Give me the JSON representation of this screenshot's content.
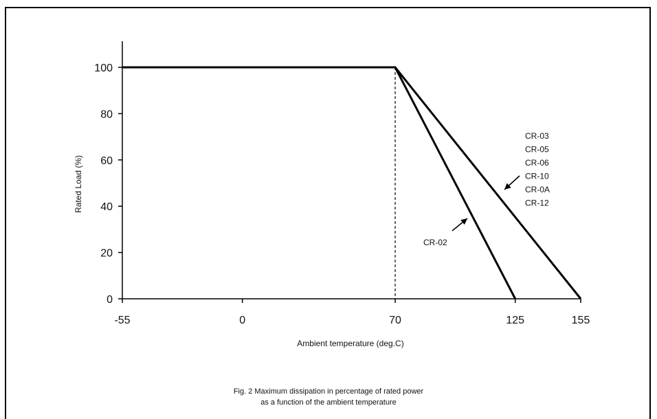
{
  "chart_data": {
    "type": "line",
    "xlabel": "Ambient temperature (deg.C)",
    "ylabel": "Rated Load (%)",
    "x_ticks": [
      "-55",
      "0",
      "70",
      "125",
      "155"
    ],
    "y_ticks": [
      "0",
      "20",
      "40",
      "60",
      "80",
      "100"
    ],
    "xlim": [
      -55,
      155
    ],
    "ylim": [
      0,
      110
    ],
    "grid": false,
    "series": [
      {
        "x": [
          -55,
          70,
          125
        ],
        "y": [
          100,
          100,
          0
        ]
      },
      {
        "x": [
          70,
          155
        ],
        "y": [
          100,
          0
        ]
      }
    ],
    "reference_lines": [
      {
        "orientation": "vertical",
        "x": 70,
        "y_from": 0,
        "y_to": 100,
        "style": "dashed"
      }
    ],
    "annotations": [
      {
        "lines": [
          "CR-02"
        ]
      },
      {
        "lines": [
          "CR-03",
          "CR-05",
          "CR-06",
          "CR-10",
          "CR-0A",
          "CR-12"
        ]
      }
    ]
  },
  "caption": {
    "line1": "Fig. 2 Maximum dissipation in percentage of rated power",
    "line2": "as a function of the ambient temperature"
  }
}
